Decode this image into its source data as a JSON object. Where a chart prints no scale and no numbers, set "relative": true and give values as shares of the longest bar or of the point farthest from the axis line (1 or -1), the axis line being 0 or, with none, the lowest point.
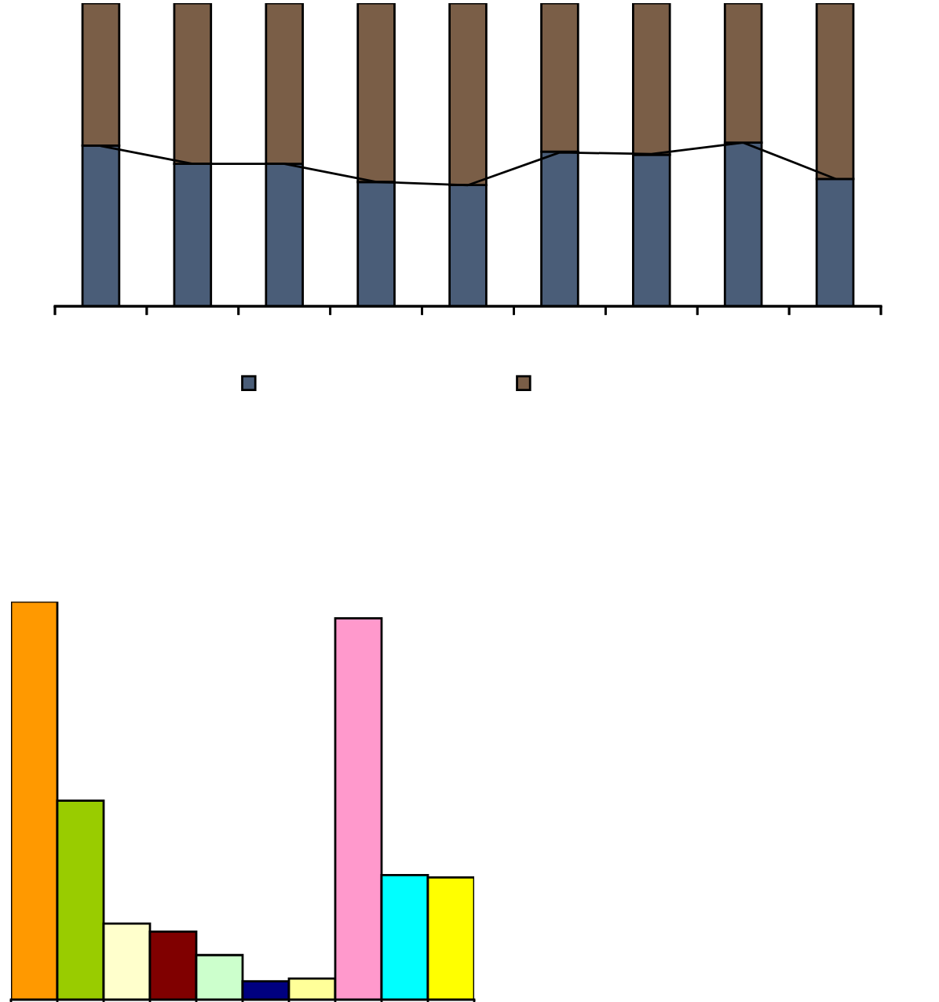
{
  "chart_data": [
    {
      "type": "bar",
      "stacked": true,
      "relative": true,
      "categories": [
        null,
        null,
        null,
        null,
        null,
        null,
        null,
        null,
        null
      ],
      "series": [
        {
          "color": "#4a5d78",
          "values": [
            0.53,
            0.47,
            0.47,
            0.41,
            0.4,
            0.51,
            0.5,
            0.54,
            0.42
          ]
        },
        {
          "color": "#7a5e47",
          "values": [
            0.47,
            0.53,
            0.53,
            0.59,
            0.6,
            0.49,
            0.5,
            0.46,
            0.58
          ]
        }
      ]
    },
    {
      "type": "line",
      "relative": true,
      "categories": [
        null,
        null,
        null,
        null,
        null,
        null,
        null,
        null,
        null
      ],
      "color": "#000000",
      "values": [
        0.98,
        0.87,
        0.87,
        0.76,
        0.74,
        0.94,
        0.93,
        1,
        0.78
      ]
    },
    {
      "type": "bar",
      "relative": true,
      "categories": [
        null,
        null,
        null,
        null,
        null,
        null,
        null,
        null,
        null,
        null
      ],
      "values": [
        1,
        0.5,
        0.191,
        0.171,
        0.112,
        0.046,
        0.053,
        0.958,
        0.313,
        0.307
      ],
      "colors": [
        "#ff9900",
        "#99cc00",
        "#ffffcc",
        "#800000",
        "#ccffcc",
        "#000080",
        "#ffff99",
        "#ff99cc",
        "#00ffff",
        "#ffff00"
      ]
    }
  ]
}
